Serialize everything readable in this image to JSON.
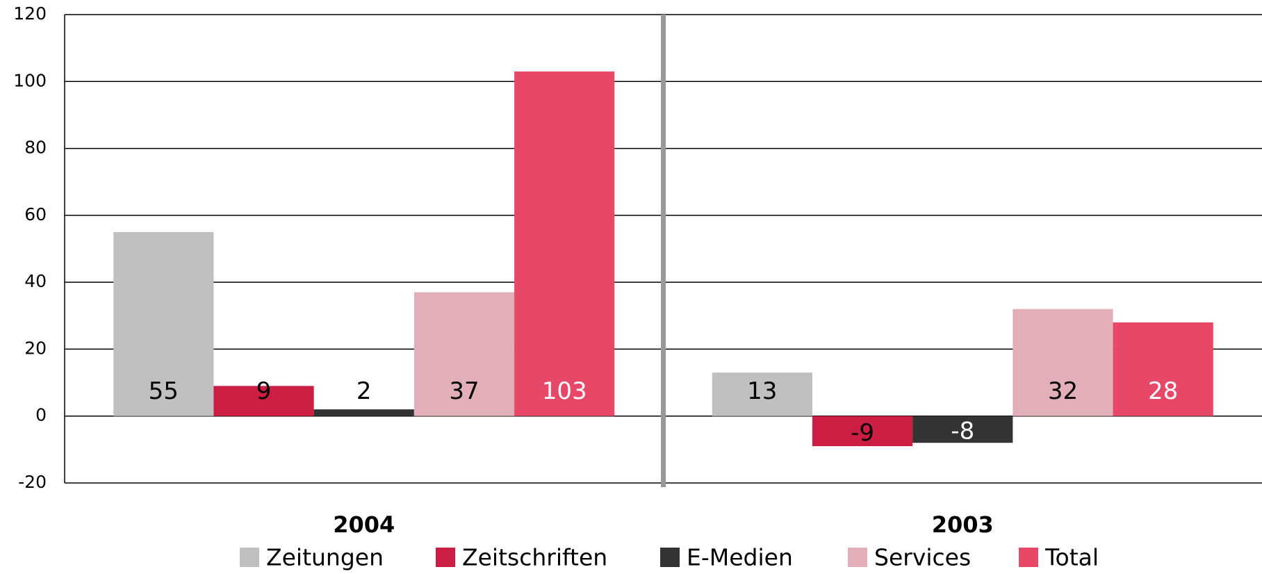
{
  "chart_data": {
    "type": "bar",
    "categories": [
      "2004",
      "2003"
    ],
    "series": [
      {
        "name": "Zeitungen",
        "color": "#c0c0c0",
        "values": [
          55,
          13
        ]
      },
      {
        "name": "Zeitschriften",
        "color": "#cc1e42",
        "values": [
          9,
          -9
        ]
      },
      {
        "name": "E-Medien",
        "color": "#333333",
        "values": [
          2,
          -8
        ]
      },
      {
        "name": "Services",
        "color": "#e2afb8",
        "values": [
          37,
          32
        ]
      },
      {
        "name": "Total",
        "color": "#e84868",
        "values": [
          103,
          28
        ]
      }
    ],
    "ylim": [
      -20,
      120
    ],
    "yticks": [
      -20,
      0,
      20,
      40,
      60,
      80,
      100,
      120
    ],
    "grid": true,
    "legend": "bottom"
  }
}
